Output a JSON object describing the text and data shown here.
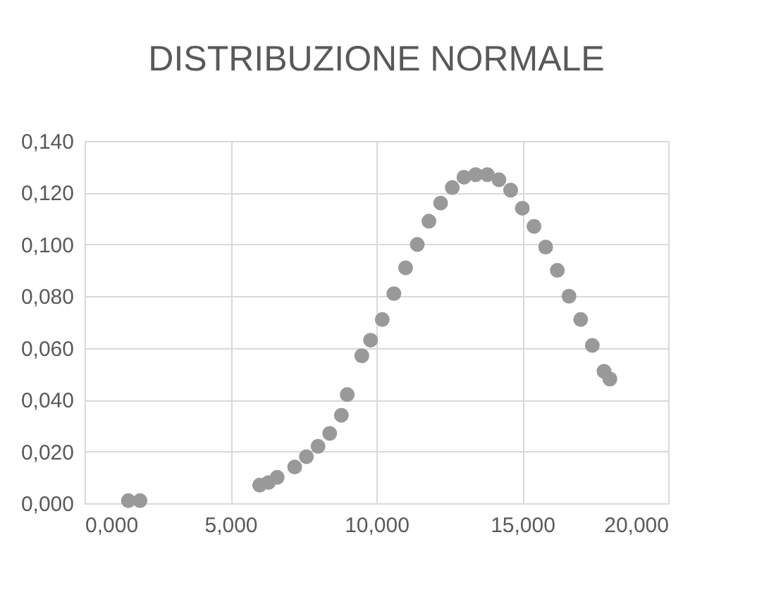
{
  "chart_data": {
    "type": "scatter",
    "title": "DISTRIBUZIONE NORMALE",
    "marker": "circle",
    "grid": true,
    "x": [
      1.5,
      1.9,
      6.0,
      6.3,
      6.6,
      7.2,
      7.6,
      8.0,
      8.4,
      8.8,
      9.0,
      9.5,
      9.8,
      10.2,
      10.6,
      11.0,
      11.4,
      11.8,
      12.2,
      12.6,
      13.0,
      13.4,
      13.8,
      14.2,
      14.6,
      15.0,
      15.4,
      15.8,
      16.2,
      16.6,
      17.0,
      17.4,
      17.8,
      18.0
    ],
    "series": [
      {
        "color": "#999999",
        "values": [
          0.001,
          0.001,
          0.007,
          0.008,
          0.01,
          0.014,
          0.018,
          0.022,
          0.027,
          0.034,
          0.042,
          0.057,
          0.063,
          0.071,
          0.081,
          0.091,
          0.1,
          0.109,
          0.116,
          0.122,
          0.126,
          0.127,
          0.127,
          0.125,
          0.121,
          0.114,
          0.107,
          0.099,
          0.09,
          0.08,
          0.071,
          0.061,
          0.051,
          0.048
        ]
      }
    ],
    "xlim": [
      0,
      20
    ],
    "xticks": [
      {
        "value": 0,
        "label": "0,000"
      },
      {
        "value": 5,
        "label": "5,000"
      },
      {
        "value": 10,
        "label": "10,000"
      },
      {
        "value": 15,
        "label": "15,000"
      },
      {
        "value": 20,
        "label": "20,000"
      }
    ],
    "ylim": [
      0,
      0.14
    ],
    "yticks": [
      {
        "value": 0,
        "label": "0,000"
      },
      {
        "value": 0.02,
        "label": "0,020"
      },
      {
        "value": 0.04,
        "label": "0,040"
      },
      {
        "value": 0.06,
        "label": "0,060"
      },
      {
        "value": 0.08,
        "label": "0,080"
      },
      {
        "value": 0.1,
        "label": "0,100"
      },
      {
        "value": 0.12,
        "label": "0,120"
      },
      {
        "value": 0.14,
        "label": "0,140"
      }
    ]
  }
}
